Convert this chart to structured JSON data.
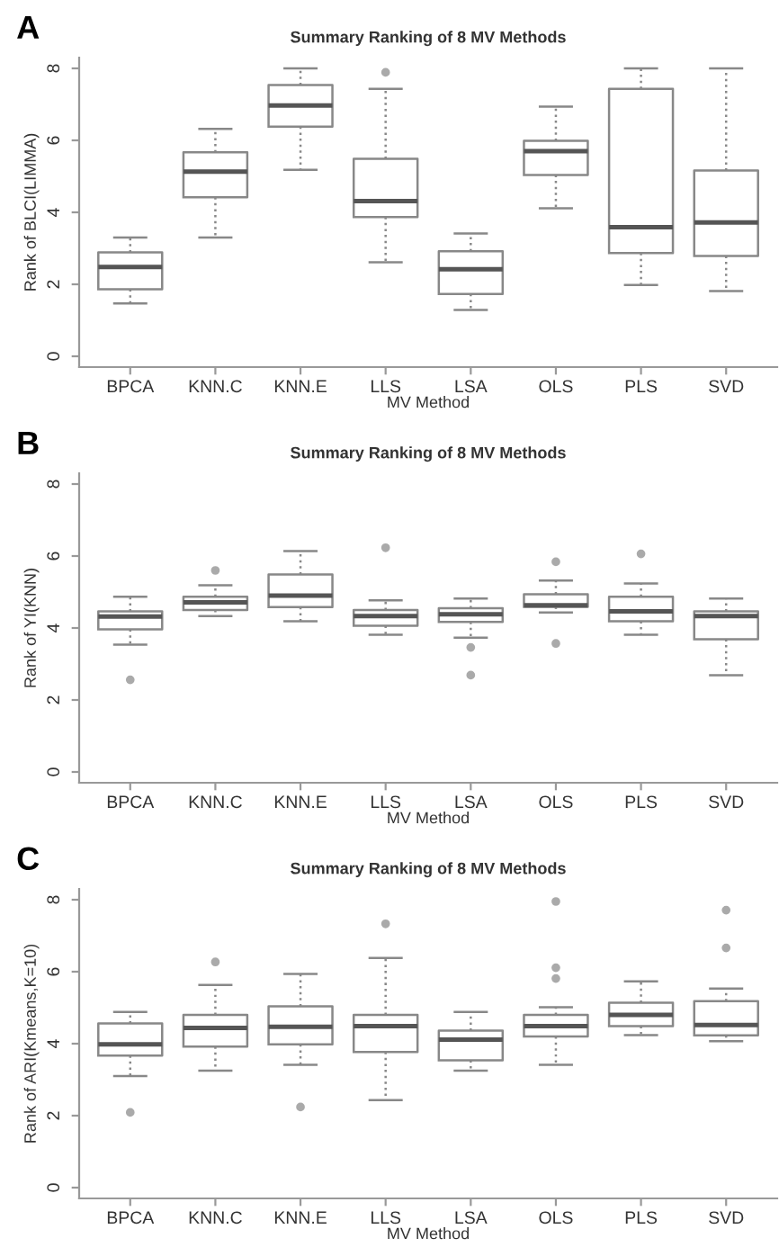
{
  "chart_data": [
    {
      "type": "box",
      "title": "Summary Ranking of 8 MV Methods",
      "xlabel": "MV Method",
      "ylabel": "Rank of BLCI(LIMMA)",
      "annotations": [
        "A"
      ],
      "categories": [
        "BPCA",
        "KNN.C",
        "KNN.E",
        "LLS",
        "LSA",
        "OLS",
        "PLS",
        "SVD"
      ],
      "ylim": [
        -0.3,
        8.3
      ],
      "yticks": [
        0,
        2,
        4,
        6,
        8
      ],
      "grid": false,
      "line_style": "dotted",
      "boxes": [
        {
          "low": 1.47,
          "q1": 1.86,
          "median": 2.48,
          "q3": 2.89,
          "high": 3.3
        },
        {
          "low": 3.3,
          "q1": 4.42,
          "median": 5.13,
          "q3": 5.67,
          "high": 6.32
        },
        {
          "low": 5.18,
          "q1": 6.38,
          "median": 6.97,
          "q3": 7.54,
          "high": 8.0
        },
        {
          "low": 2.61,
          "q1": 3.87,
          "median": 4.31,
          "q3": 5.49,
          "high": 7.43,
          "outliers": [
            7.89
          ]
        },
        {
          "low": 1.29,
          "q1": 1.73,
          "median": 2.42,
          "q3": 2.92,
          "high": 3.41
        },
        {
          "low": 4.11,
          "q1": 5.04,
          "median": 5.7,
          "q3": 5.99,
          "high": 6.94
        },
        {
          "low": 1.98,
          "q1": 2.87,
          "median": 3.59,
          "q3": 7.43,
          "high": 8.0
        },
        {
          "low": 1.81,
          "q1": 2.79,
          "median": 3.72,
          "q3": 5.16,
          "high": 8.0
        }
      ]
    },
    {
      "type": "box",
      "title": "Summary Ranking of 8 MV Methods",
      "xlabel": "MV Method",
      "ylabel": "Rank of YI(KNN)",
      "annotations": [
        "B"
      ],
      "categories": [
        "BPCA",
        "KNN.C",
        "KNN.E",
        "LLS",
        "LSA",
        "OLS",
        "PLS",
        "SVD"
      ],
      "ylim": [
        -0.3,
        8.3
      ],
      "yticks": [
        0,
        2,
        4,
        6,
        8
      ],
      "grid": false,
      "line_style": "dotted",
      "boxes": [
        {
          "low": 3.54,
          "q1": 3.96,
          "median": 4.32,
          "q3": 4.46,
          "high": 4.87,
          "outliers": [
            2.56
          ]
        },
        {
          "low": 4.33,
          "q1": 4.5,
          "median": 4.71,
          "q3": 4.87,
          "high": 5.19,
          "outliers": [
            5.6
          ]
        },
        {
          "low": 4.19,
          "q1": 4.58,
          "median": 4.9,
          "q3": 5.49,
          "high": 6.14
        },
        {
          "low": 3.81,
          "q1": 4.06,
          "median": 4.33,
          "q3": 4.5,
          "high": 4.77,
          "outliers": [
            6.23
          ]
        },
        {
          "low": 3.73,
          "q1": 4.17,
          "median": 4.38,
          "q3": 4.55,
          "high": 4.82,
          "outliers": [
            3.46,
            2.69
          ]
        },
        {
          "low": 4.43,
          "q1": 4.59,
          "median": 4.63,
          "q3": 4.94,
          "high": 5.32,
          "outliers": [
            5.84,
            3.57
          ]
        },
        {
          "low": 3.81,
          "q1": 4.19,
          "median": 4.46,
          "q3": 4.87,
          "high": 5.24,
          "outliers": [
            6.06
          ]
        },
        {
          "low": 2.69,
          "q1": 3.69,
          "median": 4.33,
          "q3": 4.46,
          "high": 4.82
        }
      ]
    },
    {
      "type": "box",
      "title": "Summary Ranking of 8 MV Methods",
      "xlabel": "MV Method",
      "ylabel": "Rank of ARI(Kmeans,K=10)",
      "annotations": [
        "C"
      ],
      "categories": [
        "BPCA",
        "KNN.C",
        "KNN.E",
        "LLS",
        "LSA",
        "OLS",
        "PLS",
        "SVD"
      ],
      "ylim": [
        -0.3,
        8.3
      ],
      "yticks": [
        0,
        2,
        4,
        6,
        8
      ],
      "grid": false,
      "line_style": "dotted",
      "boxes": [
        {
          "low": 3.1,
          "q1": 3.67,
          "median": 3.98,
          "q3": 4.56,
          "high": 4.88,
          "outliers": [
            2.09
          ]
        },
        {
          "low": 3.25,
          "q1": 3.92,
          "median": 4.44,
          "q3": 4.8,
          "high": 5.63,
          "outliers": [
            6.27
          ]
        },
        {
          "low": 3.41,
          "q1": 3.98,
          "median": 4.47,
          "q3": 5.04,
          "high": 5.94,
          "outliers": [
            2.24
          ]
        },
        {
          "low": 2.43,
          "q1": 3.77,
          "median": 4.49,
          "q3": 4.8,
          "high": 6.38,
          "outliers": [
            7.33
          ]
        },
        {
          "low": 3.25,
          "q1": 3.54,
          "median": 4.11,
          "q3": 4.36,
          "high": 4.88
        },
        {
          "low": 3.41,
          "q1": 4.2,
          "median": 4.49,
          "q3": 4.8,
          "high": 5.01,
          "outliers": [
            7.95,
            6.11,
            5.81
          ]
        },
        {
          "low": 4.24,
          "q1": 4.49,
          "median": 4.8,
          "q3": 5.14,
          "high": 5.73
        },
        {
          "low": 4.07,
          "q1": 4.23,
          "median": 4.52,
          "q3": 5.18,
          "high": 5.53,
          "outliers": [
            7.71,
            6.66
          ]
        }
      ]
    }
  ]
}
